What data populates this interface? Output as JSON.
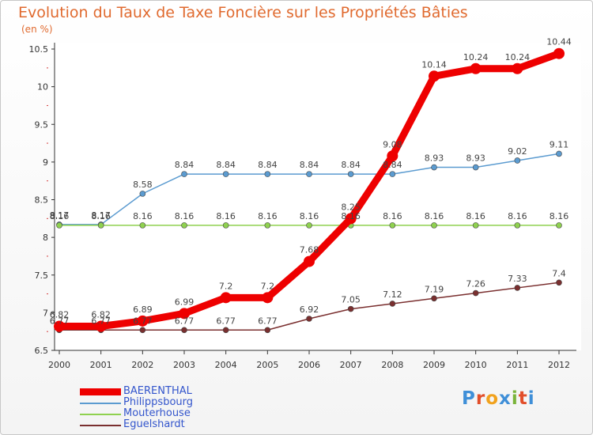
{
  "header": {
    "title": "Evolution du Taux de Taxe Foncière sur les Propriétés Bâties",
    "unit": "(en %)"
  },
  "logo": {
    "text": "Proxiti",
    "colors": [
      "#3f8fd8",
      "#e24e2a",
      "#f1a21d",
      "#3f8fd8",
      "#7ab43a",
      "#e24e2a",
      "#3f8fd8"
    ]
  },
  "chart_data": {
    "type": "line",
    "x": [
      "2000",
      "2001",
      "2002",
      "2003",
      "2004",
      "2005",
      "2006",
      "2007",
      "2008",
      "2009",
      "2010",
      "2011",
      "2012"
    ],
    "ylim": [
      6.5,
      10.5
    ],
    "yticks": [
      "6.5",
      "7",
      "7.5",
      "8",
      "8.5",
      "9",
      "9.5",
      "10",
      "10.5"
    ],
    "grid": false,
    "legend_position": "bottom-left",
    "series": [
      {
        "name": "BAERENTHAL",
        "color": "#ee0000",
        "emphasis": "thick",
        "values": [
          6.82,
          6.82,
          6.89,
          6.99,
          7.2,
          7.2,
          7.68,
          8.25,
          9.08,
          10.14,
          10.24,
          10.24,
          10.44
        ],
        "labels": [
          "6.82",
          "6.82",
          "6.89",
          "6.99",
          "7.2",
          "7.2",
          "7.68",
          "8.25",
          "9.08",
          "10.14",
          "10.24",
          "10.24",
          "10.44"
        ]
      },
      {
        "name": "Philippsbourg",
        "color": "#5b9bd0",
        "emphasis": "thin",
        "values": [
          8.17,
          8.17,
          8.58,
          8.84,
          8.84,
          8.84,
          8.84,
          8.84,
          8.84,
          8.93,
          8.93,
          9.02,
          9.11
        ],
        "labels": [
          "8.17",
          "8.17",
          "8.58",
          "8.84",
          "8.84",
          "8.84",
          "8.84",
          "8.84",
          "8.84",
          "8.93",
          "8.93",
          "9.02",
          "9.11"
        ]
      },
      {
        "name": "Mouterhouse",
        "color": "#8fd14f",
        "emphasis": "thin",
        "values": [
          8.16,
          8.16,
          8.16,
          8.16,
          8.16,
          8.16,
          8.16,
          8.16,
          8.16,
          8.16,
          8.16,
          8.16,
          8.16
        ],
        "labels": [
          "8.16",
          "8.16",
          "8.16",
          "8.16",
          "8.16",
          "8.16",
          "8.16",
          "8.16",
          "8.16",
          "8.16",
          "8.16",
          "8.16",
          "8.16"
        ]
      },
      {
        "name": "Eguelshardt",
        "color": "#7a2f2f",
        "emphasis": "thin",
        "values": [
          6.77,
          6.77,
          6.77,
          6.77,
          6.77,
          6.77,
          6.92,
          7.05,
          7.12,
          7.19,
          7.26,
          7.33,
          7.4
        ],
        "labels": [
          "6.77",
          "6.77",
          "6.77",
          "6.77",
          "6.77",
          "6.77",
          "6.92",
          "7.05",
          "7.12",
          "7.19",
          "7.26",
          "7.33",
          "7.4"
        ]
      }
    ]
  }
}
